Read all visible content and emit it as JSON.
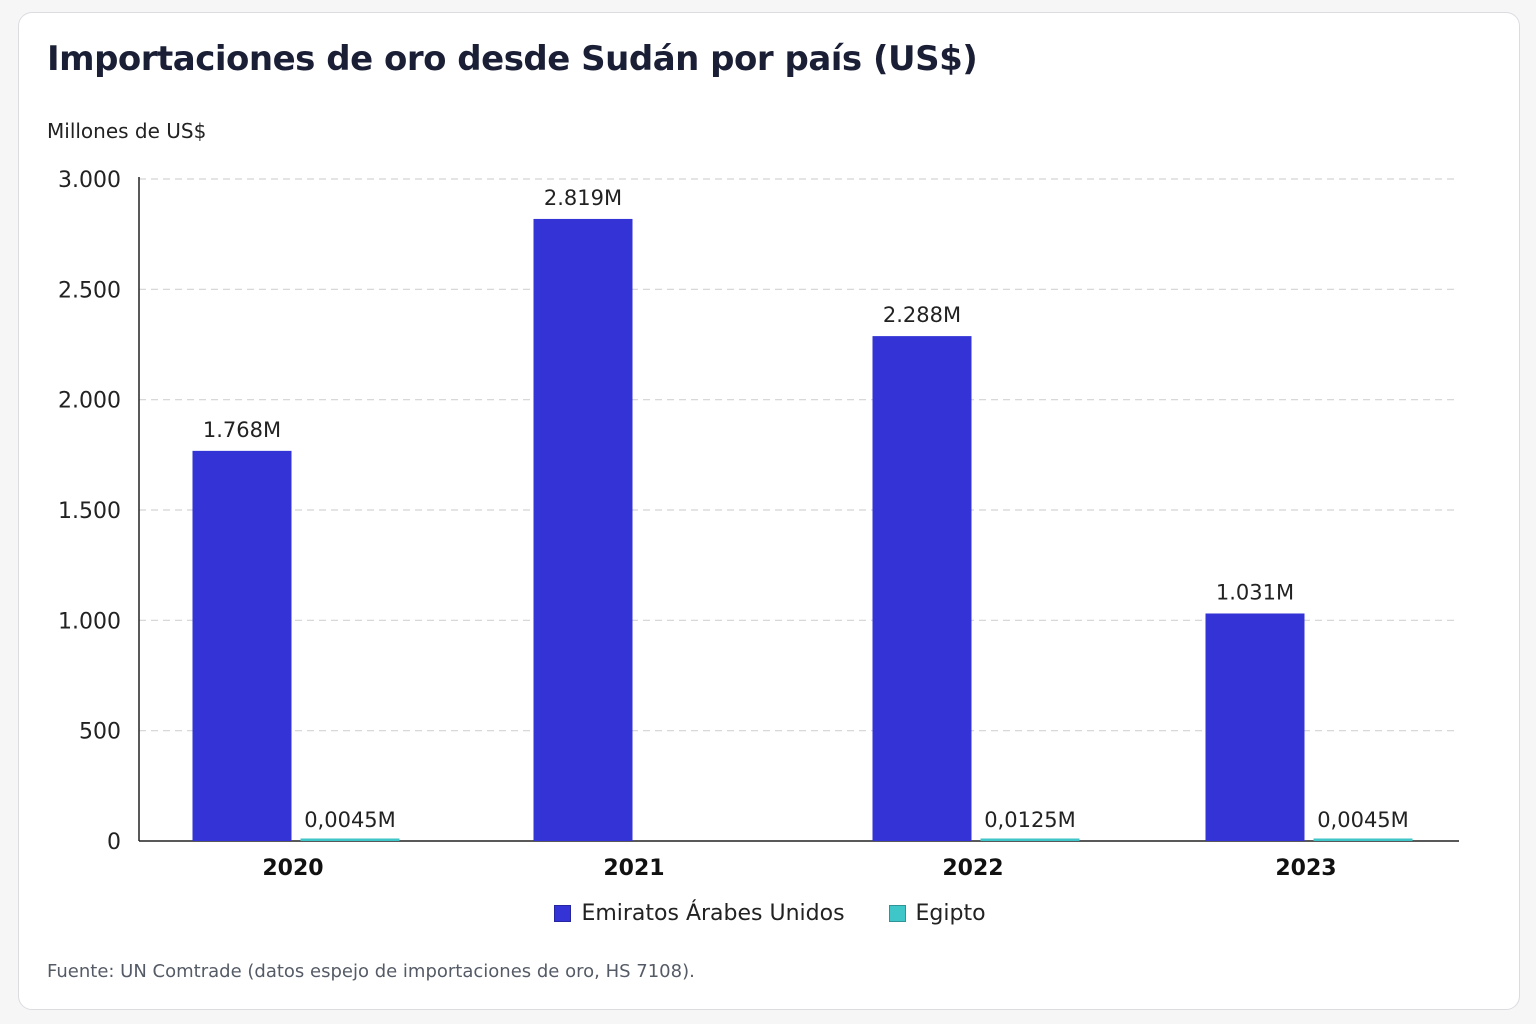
{
  "title": "Importaciones de oro desde Sudán por país (US$)",
  "unit_label": "Millones de US$",
  "source": "Fuente: UN Comtrade (datos espejo de importaciones de oro, HS 7108).",
  "chart_data": {
    "type": "bar",
    "title": "Importaciones de oro desde Sudán por país (US$)",
    "ylabel": "Millones de US$",
    "xlabel": "",
    "ylim": [
      0,
      3000
    ],
    "yticks": [
      0,
      500,
      1000,
      1500,
      2000,
      2500,
      3000
    ],
    "ytick_labels": [
      "0",
      "500",
      "1.000",
      "1.500",
      "2.000",
      "2.500",
      "3.000"
    ],
    "grid": true,
    "legend_position": "bottom-center",
    "categories": [
      "2020",
      "2021",
      "2022",
      "2023"
    ],
    "series": [
      {
        "name": "Emiratos Árabes Unidos",
        "color": "#3333d6",
        "values": [
          1768,
          2819,
          2288,
          1031
        ],
        "labels": [
          "1.768M",
          "2.819M",
          "2.288M",
          "1.031M"
        ]
      },
      {
        "name": "Egipto",
        "color": "#3fc6c9",
        "values": [
          0.0045,
          null,
          0.0125,
          0.0045
        ],
        "labels": [
          "0,0045M",
          null,
          "0,0125M",
          "0,0045M"
        ]
      }
    ]
  }
}
